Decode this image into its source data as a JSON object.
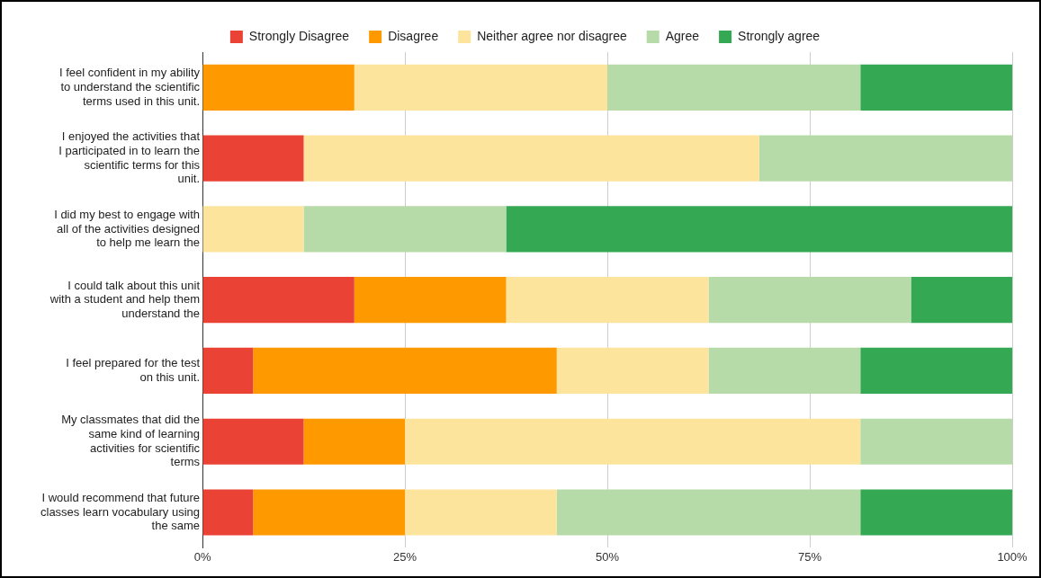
{
  "chart_data": {
    "type": "bar",
    "orientation": "horizontal",
    "stacked": true,
    "categories": [
      "I feel confident in my ability to understand the scientific terms used in this unit.",
      "I enjoyed the activities that I participated in to learn the scientific terms for this unit.",
      "I did my best to engage with all of the activities designed to help me learn the",
      "I could talk about this unit with a student and help them understand the",
      "I feel prepared for the test on this unit.",
      "My classmates that did the same kind of learning activities for scientific terms",
      "I would recommend that future classes learn vocabulary using the same"
    ],
    "series": [
      {
        "name": "Strongly Disagree",
        "color": "#ea4335",
        "values": [
          0,
          12.5,
          0,
          18.75,
          6.25,
          12.5,
          6.25
        ]
      },
      {
        "name": "Disagree",
        "color": "#ff9900",
        "values": [
          18.75,
          0,
          0,
          18.75,
          37.5,
          12.5,
          18.75
        ]
      },
      {
        "name": "Neither agree nor disagree",
        "color": "#fde49c",
        "values": [
          31.25,
          56.25,
          12.5,
          25,
          18.75,
          56.25,
          18.75
        ]
      },
      {
        "name": "Agree",
        "color": "#b7dba8",
        "values": [
          31.25,
          31.25,
          25,
          25,
          18.75,
          18.75,
          37.5
        ]
      },
      {
        "name": "Strongly agree",
        "color": "#34a853",
        "values": [
          18.75,
          0,
          62.5,
          12.5,
          18.75,
          0,
          18.75
        ]
      }
    ],
    "xlim": [
      0,
      100
    ],
    "xticks": [
      {
        "value": 0,
        "label": "0%"
      },
      {
        "value": 25,
        "label": "25%"
      },
      {
        "value": 50,
        "label": "50%"
      },
      {
        "value": 75,
        "label": "75%"
      },
      {
        "value": 100,
        "label": "100%"
      }
    ],
    "grid": "x",
    "legend": "top"
  }
}
